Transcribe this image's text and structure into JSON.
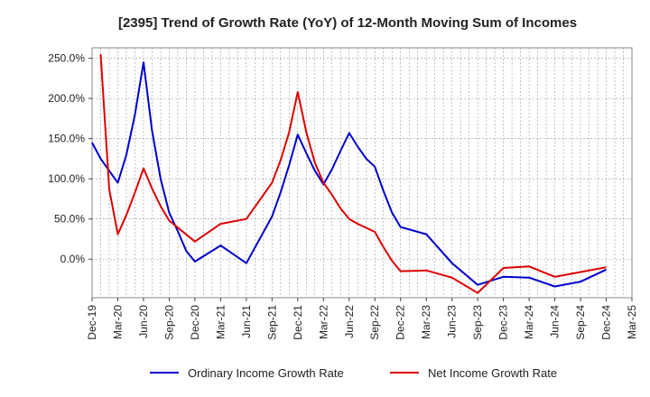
{
  "chart_data": {
    "type": "line",
    "title": "[2395]  Trend of Growth Rate (YoY) of 12-Month Moving Sum of Incomes",
    "xlabel": "",
    "ylabel": "",
    "x_tick_labels": [
      "Dec-19",
      "Mar-20",
      "Jun-20",
      "Sep-20",
      "Dec-20",
      "Mar-21",
      "Jun-21",
      "Sep-21",
      "Dec-21",
      "Mar-22",
      "Jun-22",
      "Sep-22",
      "Dec-22",
      "Mar-23",
      "Jun-23",
      "Sep-23",
      "Dec-23",
      "Mar-24",
      "Jun-24",
      "Sep-24",
      "Dec-24",
      "Mar-25"
    ],
    "y_ticks": [
      0,
      50,
      100,
      150,
      200,
      250
    ],
    "y_tick_labels": [
      "0.0%",
      "50.0%",
      "100.0%",
      "150.0%",
      "200.0%",
      "250.0%"
    ],
    "ylim": [
      -48,
      263
    ],
    "grid": true,
    "legend_position": "bottom",
    "series": [
      {
        "name": "Ordinary Income Growth Rate",
        "color": "#0000cc",
        "x": [
          "Dec-19",
          "Jan-20",
          "Feb-20",
          "Mar-20",
          "Apr-20",
          "May-20",
          "Jun-20",
          "Jul-20",
          "Aug-20",
          "Sep-20",
          "Oct-20",
          "Nov-20",
          "Dec-20",
          "Mar-21",
          "Jun-21",
          "Sep-21",
          "Oct-21",
          "Nov-21",
          "Dec-21",
          "Jan-22",
          "Feb-22",
          "Mar-22",
          "Apr-22",
          "May-22",
          "Jun-22",
          "Jul-22",
          "Aug-22",
          "Sep-22",
          "Oct-22",
          "Nov-22",
          "Dec-22",
          "Mar-23",
          "Jun-23",
          "Sep-23",
          "Dec-23",
          "Mar-24",
          "Jun-24",
          "Sep-24",
          "Dec-24"
        ],
        "values": [
          145,
          125,
          110,
          95,
          130,
          180,
          245,
          160,
          100,
          58,
          35,
          10,
          -3,
          17,
          -5,
          53,
          83,
          117,
          155,
          132,
          110,
          93,
          112,
          135,
          157,
          140,
          125,
          115,
          85,
          58,
          40,
          31,
          -5,
          -32,
          -22,
          -23,
          -34,
          -28,
          -13
        ]
      },
      {
        "name": "Net Income Growth Rate",
        "color": "#dd0000",
        "x": [
          "Jan-20",
          "Feb-20",
          "Mar-20",
          "Apr-20",
          "May-20",
          "Jun-20",
          "Jul-20",
          "Aug-20",
          "Sep-20",
          "Dec-20",
          "Mar-21",
          "Jun-21",
          "Sep-21",
          "Oct-21",
          "Nov-21",
          "Dec-21",
          "Jan-22",
          "Feb-22",
          "Mar-22",
          "Apr-22",
          "May-22",
          "Jun-22",
          "Jul-22",
          "Aug-22",
          "Sep-22",
          "Oct-22",
          "Nov-22",
          "Dec-22",
          "Mar-23",
          "Jun-23",
          "Sep-23",
          "Dec-23",
          "Mar-24",
          "Jun-24",
          "Sep-24",
          "Dec-24"
        ],
        "values": [
          255,
          87,
          31,
          55,
          83,
          113,
          88,
          66,
          48,
          22,
          44,
          50,
          95,
          123,
          158,
          208,
          158,
          120,
          95,
          80,
          63,
          50,
          44,
          39,
          34,
          15,
          -2,
          -15,
          -14,
          -23,
          -42,
          -11,
          -9,
          -22,
          -16,
          -10
        ]
      }
    ]
  }
}
